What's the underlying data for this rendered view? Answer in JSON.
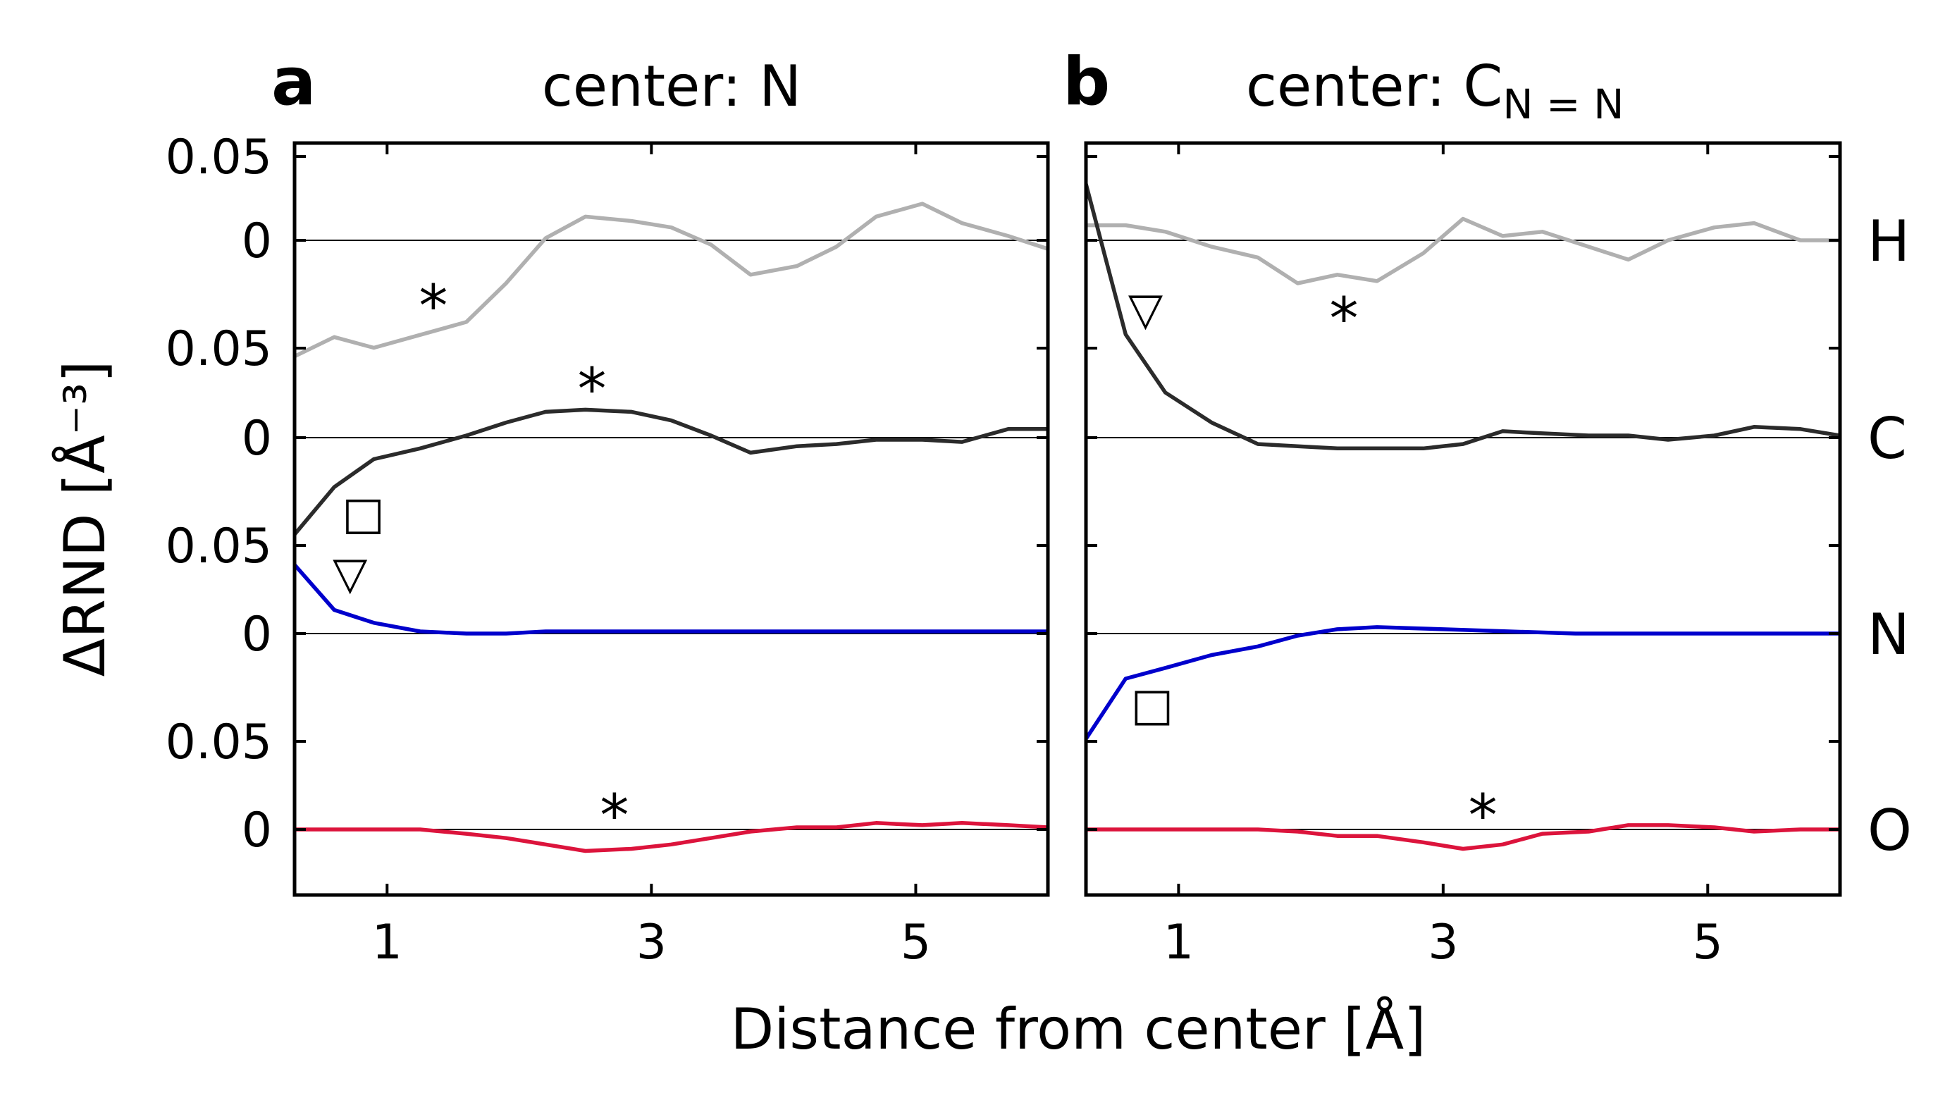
{
  "chart_data": {
    "type": "line",
    "ylabel": "ΔRND [Å⁻³]",
    "xlabel": "Distance from center [Å]",
    "xlim": [
      0.3,
      6.0
    ],
    "xticks": [
      1,
      3,
      5
    ],
    "yticks": [
      "0.05",
      "0"
    ],
    "element_labels": [
      "H",
      "C",
      "N",
      "O"
    ],
    "colors": {
      "H": "#b0b0b0",
      "C": "#2b2b2b",
      "N": "#0000cc",
      "O": "#dc143c"
    },
    "panels": [
      {
        "letter": "a",
        "title": "center: N",
        "title_sub": "",
        "series": [
          {
            "name": "H",
            "x": [
              0.3,
              0.6,
              0.9,
              1.25,
              1.6,
              1.9,
              2.2,
              2.5,
              2.85,
              3.15,
              3.45,
              3.75,
              4.1,
              4.4,
              4.7,
              5.05,
              5.35,
              5.7,
              6.0
            ],
            "y": [
              -0.054,
              -0.045,
              -0.05,
              -0.044,
              -0.038,
              -0.02,
              0.001,
              0.011,
              0.009,
              0.006,
              -0.002,
              -0.016,
              -0.012,
              -0.003,
              0.011,
              0.017,
              0.008,
              0.002,
              -0.004
            ]
          },
          {
            "name": "C",
            "x": [
              0.3,
              0.6,
              0.9,
              1.25,
              1.6,
              1.9,
              2.2,
              2.5,
              2.85,
              3.15,
              3.45,
              3.75,
              4.1,
              4.4,
              4.7,
              5.05,
              5.35,
              5.7,
              6.0
            ],
            "y": [
              -0.045,
              -0.023,
              -0.01,
              -0.005,
              0.001,
              0.007,
              0.012,
              0.013,
              0.012,
              0.008,
              0.001,
              -0.007,
              -0.004,
              -0.003,
              -0.001,
              -0.001,
              -0.002,
              0.004,
              0.004
            ]
          },
          {
            "name": "N",
            "x": [
              0.3,
              0.6,
              0.9,
              1.25,
              1.6,
              1.9,
              2.2,
              2.5,
              3.0,
              4.0,
              5.0,
              6.0
            ],
            "y": [
              0.032,
              0.011,
              0.005,
              0.001,
              0.0,
              0.0,
              0.001,
              0.001,
              0.001,
              0.001,
              0.001,
              0.001
            ]
          },
          {
            "name": "O",
            "x": [
              0.3,
              0.6,
              0.9,
              1.25,
              1.6,
              1.9,
              2.2,
              2.5,
              2.85,
              3.15,
              3.45,
              3.75,
              4.1,
              4.4,
              4.7,
              5.05,
              5.35,
              5.7,
              6.0
            ],
            "y": [
              0.0,
              0.0,
              0.0,
              0.0,
              -0.002,
              -0.004,
              -0.007,
              -0.01,
              -0.009,
              -0.007,
              -0.004,
              -0.001,
              0.001,
              0.001,
              0.003,
              0.002,
              0.003,
              0.002,
              0.001
            ]
          }
        ],
        "annotations": [
          {
            "symbol": "*",
            "x": 1.35,
            "y": -0.025,
            "series": "H"
          },
          {
            "symbol": "*",
            "x": 2.55,
            "y": 0.028,
            "series": "C"
          },
          {
            "symbol": "□",
            "x": 0.82,
            "y": -0.035,
            "series": "C"
          },
          {
            "symbol": "▽",
            "x": 0.72,
            "y": 0.028,
            "series": "N"
          },
          {
            "symbol": "*",
            "x": 2.72,
            "y": 0.012,
            "series": "O"
          }
        ]
      },
      {
        "letter": "b",
        "title": "center: C",
        "title_sub": "N = N",
        "series": [
          {
            "name": "H",
            "x": [
              0.3,
              0.6,
              0.9,
              1.25,
              1.6,
              1.9,
              2.2,
              2.5,
              2.85,
              3.15,
              3.45,
              3.75,
              4.1,
              4.4,
              4.7,
              5.05,
              5.35,
              5.7,
              6.0
            ],
            "y": [
              0.007,
              0.007,
              0.004,
              -0.003,
              -0.008,
              -0.02,
              -0.016,
              -0.019,
              -0.006,
              0.01,
              0.002,
              0.004,
              -0.003,
              -0.009,
              0.0,
              0.006,
              0.008,
              0.0,
              0.0
            ]
          },
          {
            "name": "C",
            "x": [
              0.3,
              0.6,
              0.9,
              1.25,
              1.6,
              1.9,
              2.2,
              2.5,
              2.85,
              3.15,
              3.45,
              3.75,
              4.1,
              4.4,
              4.7,
              5.05,
              5.35,
              5.7,
              6.0
            ],
            "y": [
              0.118,
              0.048,
              0.021,
              0.007,
              -0.003,
              -0.004,
              -0.005,
              -0.005,
              -0.005,
              -0.003,
              0.003,
              0.002,
              0.001,
              0.001,
              -0.001,
              0.001,
              0.005,
              0.004,
              0.001
            ]
          },
          {
            "name": "N",
            "x": [
              0.3,
              0.6,
              0.9,
              1.25,
              1.6,
              1.9,
              2.2,
              2.5,
              3.0,
              3.5,
              4.0,
              5.0,
              6.0
            ],
            "y": [
              -0.049,
              -0.021,
              -0.016,
              -0.01,
              -0.006,
              -0.001,
              0.002,
              0.003,
              0.002,
              0.001,
              0.0,
              0.0,
              0.0
            ]
          },
          {
            "name": "O",
            "x": [
              0.3,
              0.6,
              0.9,
              1.25,
              1.6,
              1.9,
              2.2,
              2.5,
              2.85,
              3.15,
              3.45,
              3.75,
              4.1,
              4.4,
              4.7,
              5.05,
              5.35,
              5.7,
              6.0
            ],
            "y": [
              0.0,
              0.0,
              0.0,
              0.0,
              0.0,
              -0.001,
              -0.003,
              -0.003,
              -0.006,
              -0.009,
              -0.007,
              -0.002,
              -0.001,
              0.002,
              0.002,
              0.001,
              -0.001,
              0.0,
              0.0
            ]
          }
        ],
        "annotations": [
          {
            "symbol": "▽",
            "x": 0.75,
            "y": -0.032,
            "series": "H"
          },
          {
            "symbol": "*",
            "x": 2.25,
            "y": -0.031,
            "series": "H"
          },
          {
            "symbol": "□",
            "x": 0.8,
            "y": -0.033,
            "series": "N"
          },
          {
            "symbol": "*",
            "x": 3.3,
            "y": 0.012,
            "series": "O"
          }
        ]
      }
    ]
  }
}
